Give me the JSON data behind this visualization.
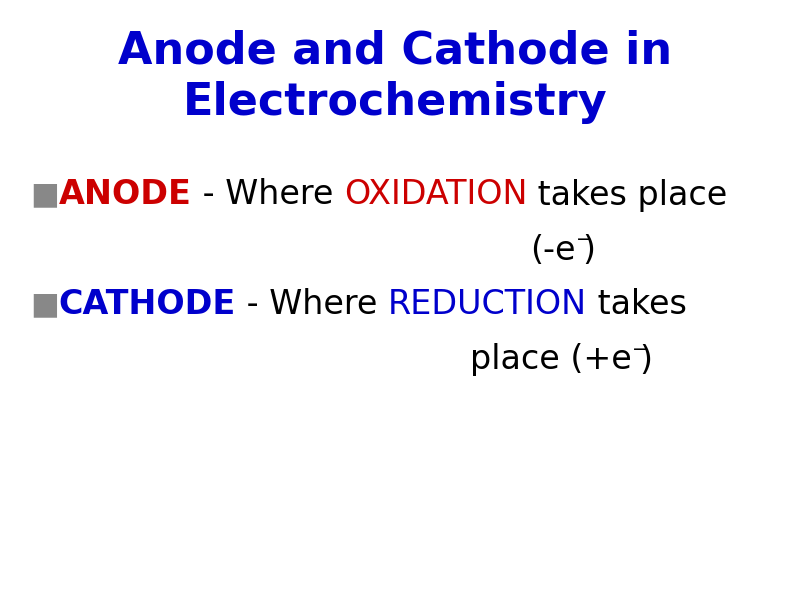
{
  "title_line1": "Anode and Cathode in",
  "title_line2": "Electrochemistry",
  "title_color": "#0000cc",
  "title_fontsize": 32,
  "title_fontweight": "bold",
  "bullet_color": "#888888",
  "bullet_char": "■",
  "anode_label": "ANODE",
  "anode_label_color": "#cc0000",
  "anode_oxidation": "OXIDATION",
  "anode_oxidation_color": "#cc0000",
  "cathode_label": "CATHODE",
  "cathode_label_color": "#0000cc",
  "cathode_reduction": "REDUCTION",
  "cathode_reduction_color": "#0000cc",
  "body_fontsize": 24,
  "body_color": "#000000",
  "background_color": "#ffffff",
  "fig_width": 7.91,
  "fig_height": 6.09,
  "dpi": 100
}
